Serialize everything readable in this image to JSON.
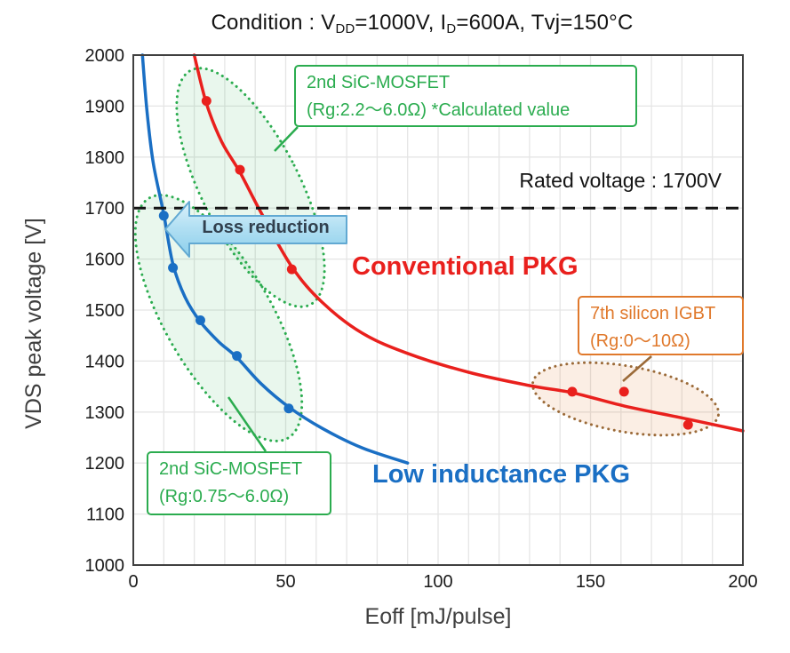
{
  "title": {
    "full": "Condition : VDD=1000V, ID=600A, Tvj=150°C",
    "segments": [
      {
        "text": "Condition : V"
      },
      {
        "sub": "DD"
      },
      {
        "text": "=1000V,  I"
      },
      {
        "sub": "D"
      },
      {
        "text": "=600A,  Tvj=150°C"
      }
    ]
  },
  "chart_data": {
    "type": "scatter",
    "xlabel": "Eoff [mJ/pulse]",
    "ylabel": "VDS peak voltage [V]",
    "xlim": [
      0,
      200
    ],
    "ylim": [
      1000,
      2000
    ],
    "x_ticks": [
      0,
      50,
      100,
      150,
      200
    ],
    "y_ticks": [
      1000,
      1100,
      1200,
      1300,
      1400,
      1500,
      1600,
      1700,
      1800,
      1900,
      2000
    ],
    "x_minor_grid_step": 10,
    "y_grid_step": 100,
    "grid": true,
    "legend_position": "none",
    "rated_voltage": 1700,
    "series": [
      {
        "name": "Conventional PKG",
        "color": "#e9201d",
        "points": [
          [
            24,
            1910
          ],
          [
            35,
            1775
          ],
          [
            52,
            1580
          ],
          [
            144,
            1340
          ],
          [
            161,
            1340
          ],
          [
            182,
            1275
          ]
        ],
        "curve": [
          [
            20,
            2000
          ],
          [
            24,
            1905
          ],
          [
            29,
            1830
          ],
          [
            35,
            1770
          ],
          [
            42,
            1690
          ],
          [
            52,
            1585
          ],
          [
            62,
            1515
          ],
          [
            75,
            1455
          ],
          [
            90,
            1415
          ],
          [
            110,
            1378
          ],
          [
            130,
            1352
          ],
          [
            144,
            1338
          ],
          [
            161,
            1312
          ],
          [
            182,
            1286
          ],
          [
            200,
            1263
          ]
        ]
      },
      {
        "name": "Low inductance PKG",
        "color": "#1a6fc4",
        "points": [
          [
            10,
            1685
          ],
          [
            13,
            1583
          ],
          [
            22,
            1480
          ],
          [
            34,
            1410
          ],
          [
            51,
            1307
          ]
        ],
        "curve": [
          [
            3,
            2000
          ],
          [
            4.5,
            1890
          ],
          [
            6.5,
            1790
          ],
          [
            10,
            1688
          ],
          [
            13,
            1590
          ],
          [
            17,
            1525
          ],
          [
            22,
            1477
          ],
          [
            28,
            1438
          ],
          [
            34,
            1407
          ],
          [
            42,
            1355
          ],
          [
            51,
            1310
          ],
          [
            62,
            1268
          ],
          [
            75,
            1230
          ],
          [
            90,
            1200
          ]
        ]
      }
    ]
  },
  "annotations": {
    "rated_voltage_label": "Rated voltage : 1700V",
    "loss_reduction_label": "Loss reduction",
    "boxes": [
      {
        "id": "sic-mosfet-top",
        "line1": "2nd SiC-MOSFET",
        "line2": "(Rg:2.2～6.0Ω) *Calculated value",
        "color": "#2bac4f"
      },
      {
        "id": "sic-mosfet-bottom",
        "line1": "2nd SiC-MOSFET",
        "line2": "(Rg:0.75～6.0Ω)",
        "color": "#2bac4f"
      },
      {
        "id": "silicon-igbt",
        "line1": "7th silicon IGBT",
        "line2": "(Rg:0～10Ω)",
        "color": "#e0792c"
      }
    ]
  },
  "colors": {
    "conventional": "#e9201d",
    "low_inductance": "#1a6fc4",
    "sic_annotation": "#2bac4f",
    "igbt_annotation": "#e0792c",
    "igbt_ellipse_dots": "#9b6a38",
    "arrow_fill": "#b3e0f3",
    "arrow_border": "#62a9d2",
    "grid": "#e5e5e5",
    "axis_frame": "#404040",
    "rated_line": "#141414"
  }
}
